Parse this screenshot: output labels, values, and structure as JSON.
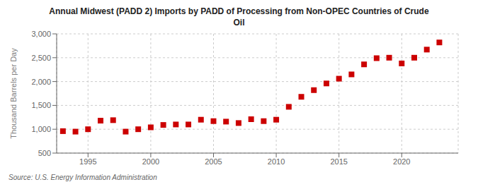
{
  "chart_data": {
    "type": "scatter",
    "title": "Annual Midwest (PADD 2) Imports by PADD of Processing from Non-OPEC Countries of Crude\nOil",
    "ylabel": "Thousand Barrels per Day",
    "annotations": [
      "Source: U.S. Energy Information Administration"
    ],
    "x": [
      1993,
      1994,
      1995,
      1996,
      1997,
      1998,
      1999,
      2000,
      2001,
      2002,
      2003,
      2004,
      2005,
      2006,
      2007,
      2008,
      2009,
      2010,
      2011,
      2012,
      2013,
      2014,
      2015,
      2016,
      2017,
      2018,
      2019,
      2020,
      2021,
      2022,
      2023
    ],
    "values": [
      960,
      950,
      1000,
      1180,
      1190,
      950,
      1000,
      1040,
      1090,
      1100,
      1100,
      1200,
      1170,
      1160,
      1130,
      1210,
      1170,
      1200,
      1470,
      1680,
      1820,
      1960,
      2060,
      2150,
      2360,
      2490,
      2500,
      2380,
      2500,
      2670,
      2820
    ],
    "color": "#cc0000",
    "marker": "square",
    "grid": true,
    "xlim": [
      1992.5,
      2024.5
    ],
    "xticks": [
      1995,
      2000,
      2005,
      2010,
      2015,
      2020
    ],
    "ylim": [
      500,
      3000
    ],
    "yticks": [
      500,
      {
        "value": 1000,
        "label": "1,000"
      },
      {
        "value": 1500,
        "label": "1,500"
      },
      {
        "value": 2000,
        "label": "2,000"
      },
      {
        "value": 2500,
        "label": "2,500"
      },
      {
        "value": 3000,
        "label": "3,000"
      }
    ]
  }
}
